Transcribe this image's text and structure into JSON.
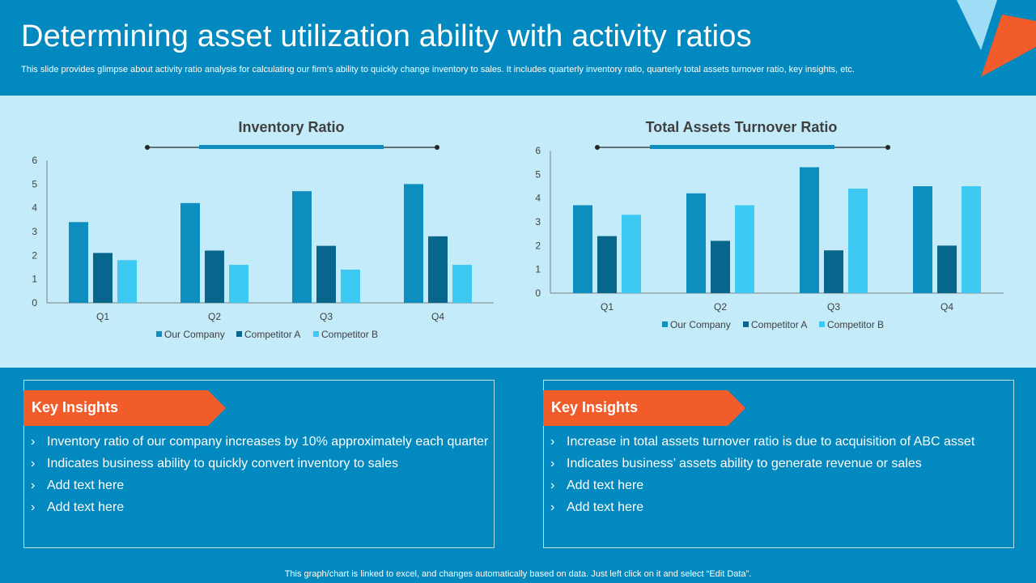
{
  "header": {
    "title": "Determining asset utilization ability with activity ratios",
    "subtitle": "This slide provides glimpse about activity ratio analysis for calculating our firm’s ability to quickly change inventory to sales. It includes quarterly inventory ratio, quarterly total assets turnover ratio, key insights, etc."
  },
  "colors": {
    "background": "#0189c0",
    "chart_band": "#c3ebfa",
    "accent_orange": "#f25c2a",
    "deco_light": "#9fdcf5",
    "axis": "#7f7f7f",
    "series": [
      "#0e8dbf",
      "#08658c",
      "#3ec9f3"
    ]
  },
  "chart_data": [
    {
      "type": "bar",
      "title": "Inventory Ratio",
      "categories": [
        "Q1",
        "Q2",
        "Q3",
        "Q4"
      ],
      "series": [
        {
          "name": "Our Company",
          "values": [
            3.4,
            4.2,
            4.7,
            5.0
          ]
        },
        {
          "name": "Competitor A",
          "values": [
            2.1,
            2.2,
            2.4,
            2.8
          ]
        },
        {
          "name": "Competitor B",
          "values": [
            1.8,
            1.6,
            1.4,
            1.6
          ]
        }
      ],
      "ylim": [
        0,
        6
      ],
      "yticks": [
        0,
        1,
        2,
        3,
        4,
        5,
        6
      ],
      "grid": false,
      "legend": "bottom"
    },
    {
      "type": "bar",
      "title": "Total Assets Turnover Ratio",
      "categories": [
        "Q1",
        "Q2",
        "Q3",
        "Q4"
      ],
      "series": [
        {
          "name": "Our Company",
          "values": [
            3.7,
            4.2,
            5.3,
            4.5
          ]
        },
        {
          "name": "Competitor A",
          "values": [
            2.4,
            2.2,
            1.8,
            2.0
          ]
        },
        {
          "name": "Competitor B",
          "values": [
            3.3,
            3.7,
            4.4,
            4.5
          ]
        }
      ],
      "ylim": [
        0,
        6
      ],
      "yticks": [
        0,
        1,
        2,
        3,
        4,
        5,
        6
      ],
      "grid": false,
      "legend": "bottom"
    }
  ],
  "insights": [
    {
      "heading": "Key Insights",
      "bullets": [
        "Inventory  ratio of our company increases by 10% approximately each quarter",
        "Indicates business ability to quickly convert inventory  to sales",
        "Add text here",
        "Add text here"
      ]
    },
    {
      "heading": "Key Insights",
      "bullets": [
        "Increase  in total assets turnover  ratio is due to acquisition of ABC asset",
        "Indicates business’ assets ability to generate revenue  or sales",
        "Add text here",
        "Add text here"
      ]
    }
  ],
  "footer": {
    "note": "This graph/chart is linked to excel,  and changes automatically based on data. Just left click on it and select “Edit Data”."
  }
}
